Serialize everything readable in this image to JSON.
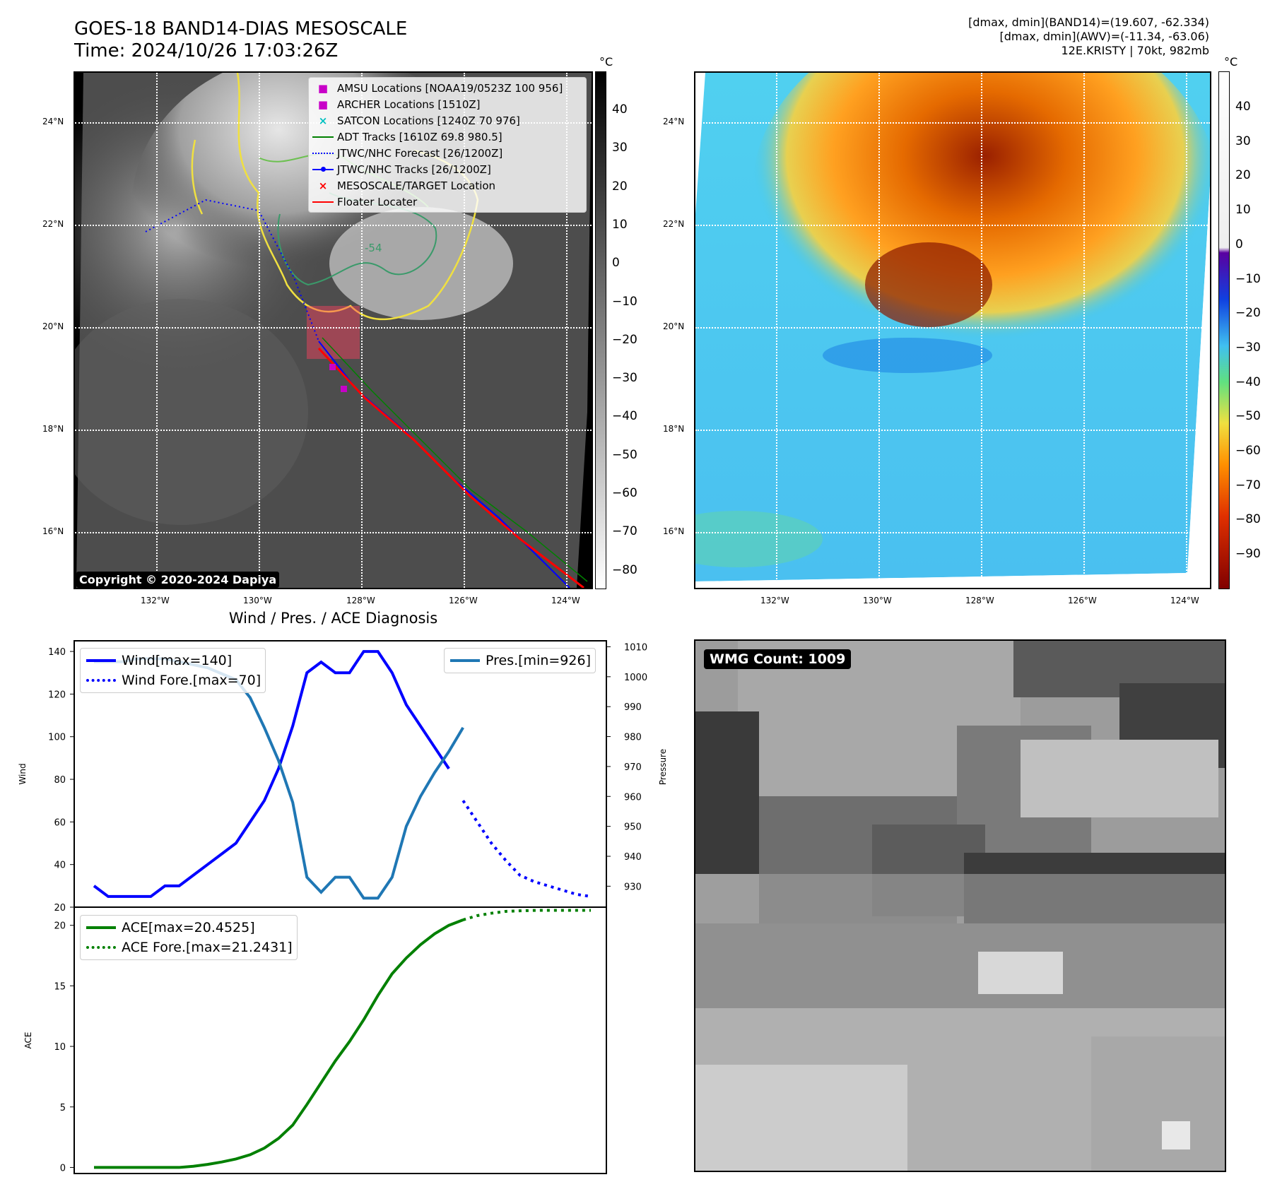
{
  "header": {
    "title_line1": "GOES-18 BAND14-DIAS MESOSCALE",
    "title_line2": "Time: 2024/10/26 17:03:26Z",
    "right_line1": "[dmax, dmin](BAND14)=(19.607, -62.334)",
    "right_line2": "[dmax, dmin](AWV)=(-11.34, -63.06)",
    "right_line3": "12E.KRISTY | 70kt, 982mb"
  },
  "map": {
    "lon_labels": [
      "132°W",
      "130°W",
      "128°W",
      "126°W",
      "124°W"
    ],
    "lat_labels": [
      "24°N",
      "22°N",
      "20°N",
      "18°N",
      "16°N"
    ],
    "contour_label": "-54",
    "copyright": "Copyright © 2020-2024 Dapiya",
    "legend": [
      {
        "label": "AMSU Locations [NOAA19/0523Z 100 956]",
        "symbol": "■",
        "color": "#c800c8"
      },
      {
        "label": "ARCHER Locations [1510Z]",
        "symbol": "■",
        "color": "#c800c8"
      },
      {
        "label": "SATCON Locations [1240Z 70 976]",
        "symbol": "×",
        "color": "#00c0c0"
      },
      {
        "label": "ADT Tracks [1610Z 69.8 980.5]",
        "symbol": "line",
        "color": "#008000"
      },
      {
        "label": "JTWC/NHC Forecast [26/1200Z]",
        "symbol": "dotted",
        "color": "#0000ff"
      },
      {
        "label": "JTWC/NHC Tracks [26/1200Z]",
        "symbol": "dotline",
        "color": "#0000ff"
      },
      {
        "label": "MESOSCALE/TARGET Location",
        "symbol": "×",
        "color": "#ff0000"
      },
      {
        "label": "Floater Locater",
        "symbol": "line",
        "color": "#ff0000"
      }
    ]
  },
  "colorbar_gray": {
    "unit": "°C",
    "ticks": [
      "40",
      "30",
      "20",
      "10",
      "0",
      "−10",
      "−20",
      "−30",
      "−40",
      "−50",
      "−60",
      "−70",
      "−80"
    ]
  },
  "colorbar_color": {
    "unit": "°C",
    "ticks": [
      "40",
      "30",
      "20",
      "10",
      "0",
      "−10",
      "−20",
      "−30",
      "−40",
      "−50",
      "−60",
      "−70",
      "−80",
      "−90"
    ]
  },
  "wmg": {
    "badge": "WMG Count: 1009"
  },
  "chart_data": [
    {
      "type": "line",
      "title": "Wind / Pres. / ACE Diagnosis",
      "ylabel": "Wind",
      "ylabel_right": "Pressure",
      "ylim": [
        20,
        145
      ],
      "ylim_right": [
        923,
        1012
      ],
      "yticks": [
        20,
        40,
        60,
        80,
        100,
        120,
        140
      ],
      "yticks_right": [
        930,
        940,
        950,
        960,
        970,
        980,
        990,
        1000,
        1010
      ],
      "series": [
        {
          "name": "Wind[max=140]",
          "color": "#0000ff",
          "style": "solid",
          "axis": "left",
          "x": [
            0,
            1,
            2,
            3,
            4,
            5,
            6,
            7,
            8,
            9,
            10,
            11,
            12,
            13,
            14,
            15,
            16,
            17,
            18,
            19,
            20,
            21,
            22,
            23,
            24,
            25
          ],
          "values": [
            30,
            25,
            25,
            25,
            25,
            30,
            30,
            35,
            40,
            45,
            50,
            60,
            70,
            85,
            105,
            130,
            135,
            130,
            130,
            140,
            140,
            130,
            115,
            105,
            95,
            85
          ]
        },
        {
          "name": "Wind Fore.[max=70]",
          "color": "#0000ff",
          "style": "dotted",
          "axis": "left",
          "x": [
            26,
            27,
            28,
            29,
            30,
            31,
            32,
            33,
            34,
            35
          ],
          "values": [
            70,
            60,
            50,
            42,
            35,
            32,
            30,
            28,
            26,
            25
          ]
        },
        {
          "name": "Pres.[min=926]",
          "color": "#1f77b4",
          "style": "solid",
          "axis": "right",
          "x": [
            0,
            1,
            2,
            3,
            4,
            5,
            6,
            7,
            8,
            9,
            10,
            11,
            12,
            13,
            14,
            15,
            16,
            17,
            18,
            19,
            20,
            21,
            22,
            23,
            24,
            25,
            26
          ],
          "values": [
            1005,
            1005,
            1005,
            1006,
            1006,
            1006,
            1005,
            1004,
            1003,
            1001,
            999,
            993,
            983,
            972,
            958,
            933,
            928,
            933,
            933,
            926,
            926,
            933,
            950,
            960,
            968,
            975,
            983
          ]
        }
      ]
    },
    {
      "type": "line",
      "ylabel": "ACE",
      "ylim": [
        -0.5,
        21.5
      ],
      "yticks": [
        0,
        5,
        10,
        15,
        20
      ],
      "series": [
        {
          "name": "ACE[max=20.4525]",
          "color": "#008000",
          "style": "solid",
          "x": [
            0,
            1,
            2,
            3,
            4,
            5,
            6,
            7,
            8,
            9,
            10,
            11,
            12,
            13,
            14,
            15,
            16,
            17,
            18,
            19,
            20,
            21,
            22,
            23,
            24,
            25,
            26
          ],
          "values": [
            0,
            0,
            0,
            0,
            0,
            0,
            0,
            0.1,
            0.25,
            0.45,
            0.7,
            1.05,
            1.6,
            2.4,
            3.5,
            5.2,
            7.0,
            8.8,
            10.4,
            12.2,
            14.2,
            16.0,
            17.3,
            18.4,
            19.3,
            20.0,
            20.45
          ]
        },
        {
          "name": "ACE Fore.[max=21.2431]",
          "color": "#008000",
          "style": "dotted",
          "x": [
            26,
            27,
            28,
            29,
            30,
            31,
            32,
            33,
            34,
            35
          ],
          "values": [
            20.45,
            20.8,
            21.0,
            21.15,
            21.2,
            21.23,
            21.24,
            21.24,
            21.24,
            21.24
          ]
        }
      ]
    }
  ]
}
